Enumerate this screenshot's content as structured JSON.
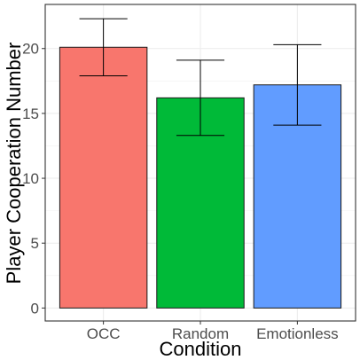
{
  "chart_data": {
    "type": "bar",
    "xlabel": "Condition",
    "ylabel": "Player Cooperation Number",
    "categories": [
      "OCC",
      "Random",
      "Emotionless"
    ],
    "values": [
      20.1,
      16.2,
      17.2
    ],
    "error_low": [
      17.9,
      13.3,
      14.1
    ],
    "error_high": [
      22.3,
      19.1,
      20.3
    ],
    "colors": [
      "#F8766D",
      "#00BA38",
      "#619CFF"
    ],
    "ylim": [
      -1,
      23.4
    ],
    "yticks": [
      "0",
      "5",
      "10",
      "15",
      "20"
    ],
    "grid": true,
    "legend": "none"
  }
}
